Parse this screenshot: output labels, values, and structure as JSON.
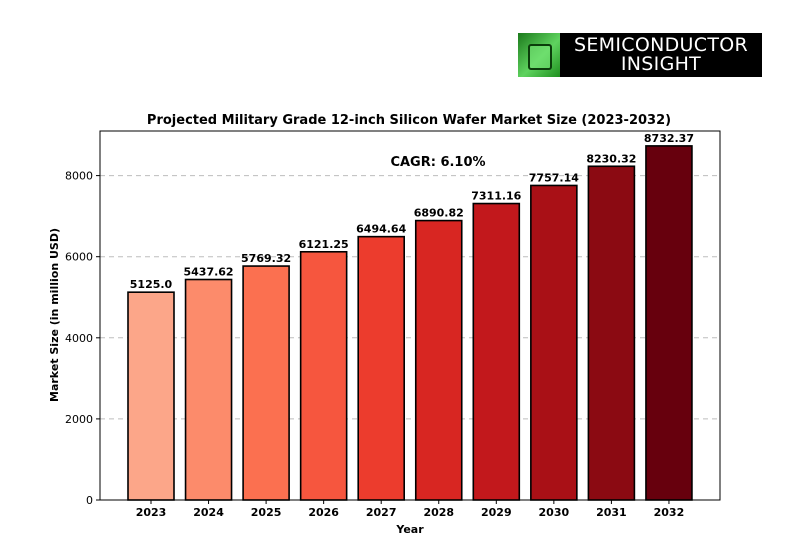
{
  "logo": {
    "line1": "SEMICONDUCTOR",
    "line2": "INSIGHT"
  },
  "chart_data": {
    "type": "bar",
    "title": "Projected Military Grade 12-inch Silicon Wafer Market Size (2023-2032)",
    "xlabel": "Year",
    "ylabel": "Market Size (in million USD)",
    "categories": [
      "2023",
      "2024",
      "2025",
      "2026",
      "2027",
      "2028",
      "2029",
      "2030",
      "2031",
      "2032"
    ],
    "values": [
      5125.0,
      5437.62,
      5769.32,
      6121.25,
      6494.64,
      6890.82,
      7311.16,
      7757.14,
      8230.32,
      8732.37
    ],
    "data_labels": [
      "5125.0",
      "5437.62",
      "5769.32",
      "6121.25",
      "6494.64",
      "6890.82",
      "7311.16",
      "7757.14",
      "8230.32",
      "8732.37"
    ],
    "colors": [
      "#fca689",
      "#fc8b6b",
      "#fb7050",
      "#f6563e",
      "#ec3c2d",
      "#d82622",
      "#c2181c",
      "#a91016",
      "#8b0a12",
      "#67000d"
    ],
    "ylim": [
      0,
      9100
    ],
    "yticks": [
      0,
      2000,
      4000,
      6000,
      8000
    ],
    "grid": "y-dashed",
    "annotation": "CAGR: 6.10%"
  }
}
